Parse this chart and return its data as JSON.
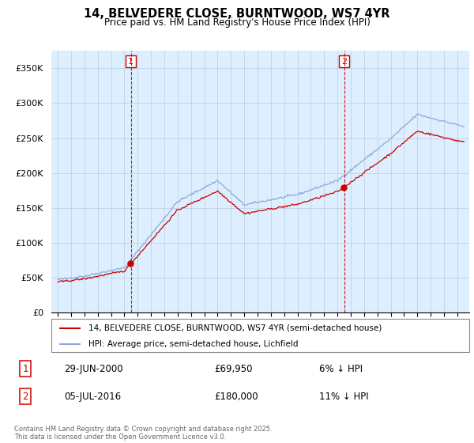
{
  "title": "14, BELVEDERE CLOSE, BURNTWOOD, WS7 4YR",
  "subtitle": "Price paid vs. HM Land Registry's House Price Index (HPI)",
  "legend_line1": "14, BELVEDERE CLOSE, BURNTWOOD, WS7 4YR (semi-detached house)",
  "legend_line2": "HPI: Average price, semi-detached house, Lichfield",
  "footer": "Contains HM Land Registry data © Crown copyright and database right 2025.\nThis data is licensed under the Open Government Licence v3.0.",
  "marker1_label": "1",
  "marker1_date": "29-JUN-2000",
  "marker1_price": "£69,950",
  "marker1_hpi": "6% ↓ HPI",
  "marker2_label": "2",
  "marker2_date": "05-JUL-2016",
  "marker2_price": "£180,000",
  "marker2_hpi": "11% ↓ HPI",
  "price_color": "#cc0000",
  "hpi_color": "#88aadd",
  "marker_vline_color": "#cc0000",
  "plot_bg_color": "#ddeeff",
  "ylim": [
    0,
    375000
  ],
  "yticks": [
    0,
    50000,
    100000,
    150000,
    200000,
    250000,
    300000,
    350000
  ],
  "year_start": 1995,
  "year_end": 2025,
  "marker1_x": 2000.49,
  "marker2_x": 2016.51,
  "grid_color": "#bbccdd",
  "bg_color": "#ffffff"
}
